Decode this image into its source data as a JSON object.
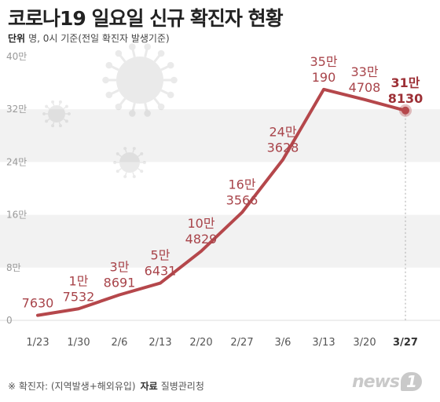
{
  "header": {
    "title": "코로나19 일요일 신규 확진자 현황",
    "unit_label": "단위",
    "unit_desc": "명, 0시 기준(전일 확진자 발생기준)"
  },
  "footer": {
    "note": "※ 확진자: (지역발생+해외유입)",
    "source_label": "자료",
    "source": "질병관리청",
    "logo_text": "news",
    "logo_badge": "1"
  },
  "colors": {
    "line": "#b5474b",
    "band": "#f2f2f2",
    "axis_text": "#999999",
    "label_text": "#a8444a"
  },
  "chart_data": {
    "type": "line",
    "categories": [
      "1/23",
      "1/30",
      "2/6",
      "2/13",
      "2/20",
      "2/27",
      "3/6",
      "3/13",
      "3/20",
      "3/27"
    ],
    "values": [
      7630,
      17532,
      38691,
      56431,
      104829,
      163566,
      243628,
      350190,
      334708,
      318130
    ],
    "point_labels": [
      [
        "7630"
      ],
      [
        "1만",
        "7532"
      ],
      [
        "3만",
        "8691"
      ],
      [
        "5만",
        "6431"
      ],
      [
        "10만",
        "4829"
      ],
      [
        "16만",
        "3566"
      ],
      [
        "24만",
        "3628"
      ],
      [
        "35만",
        "190"
      ],
      [
        "33만",
        "4708"
      ],
      [
        "31만",
        "8130"
      ]
    ],
    "ylim": [
      0,
      400000
    ],
    "yticks": [
      0,
      80000,
      160000,
      240000,
      320000,
      400000
    ],
    "ytick_labels": [
      "0",
      "8만",
      "16만",
      "24만",
      "32만",
      "40만"
    ],
    "highlight_last": true,
    "grid_bands": true
  }
}
